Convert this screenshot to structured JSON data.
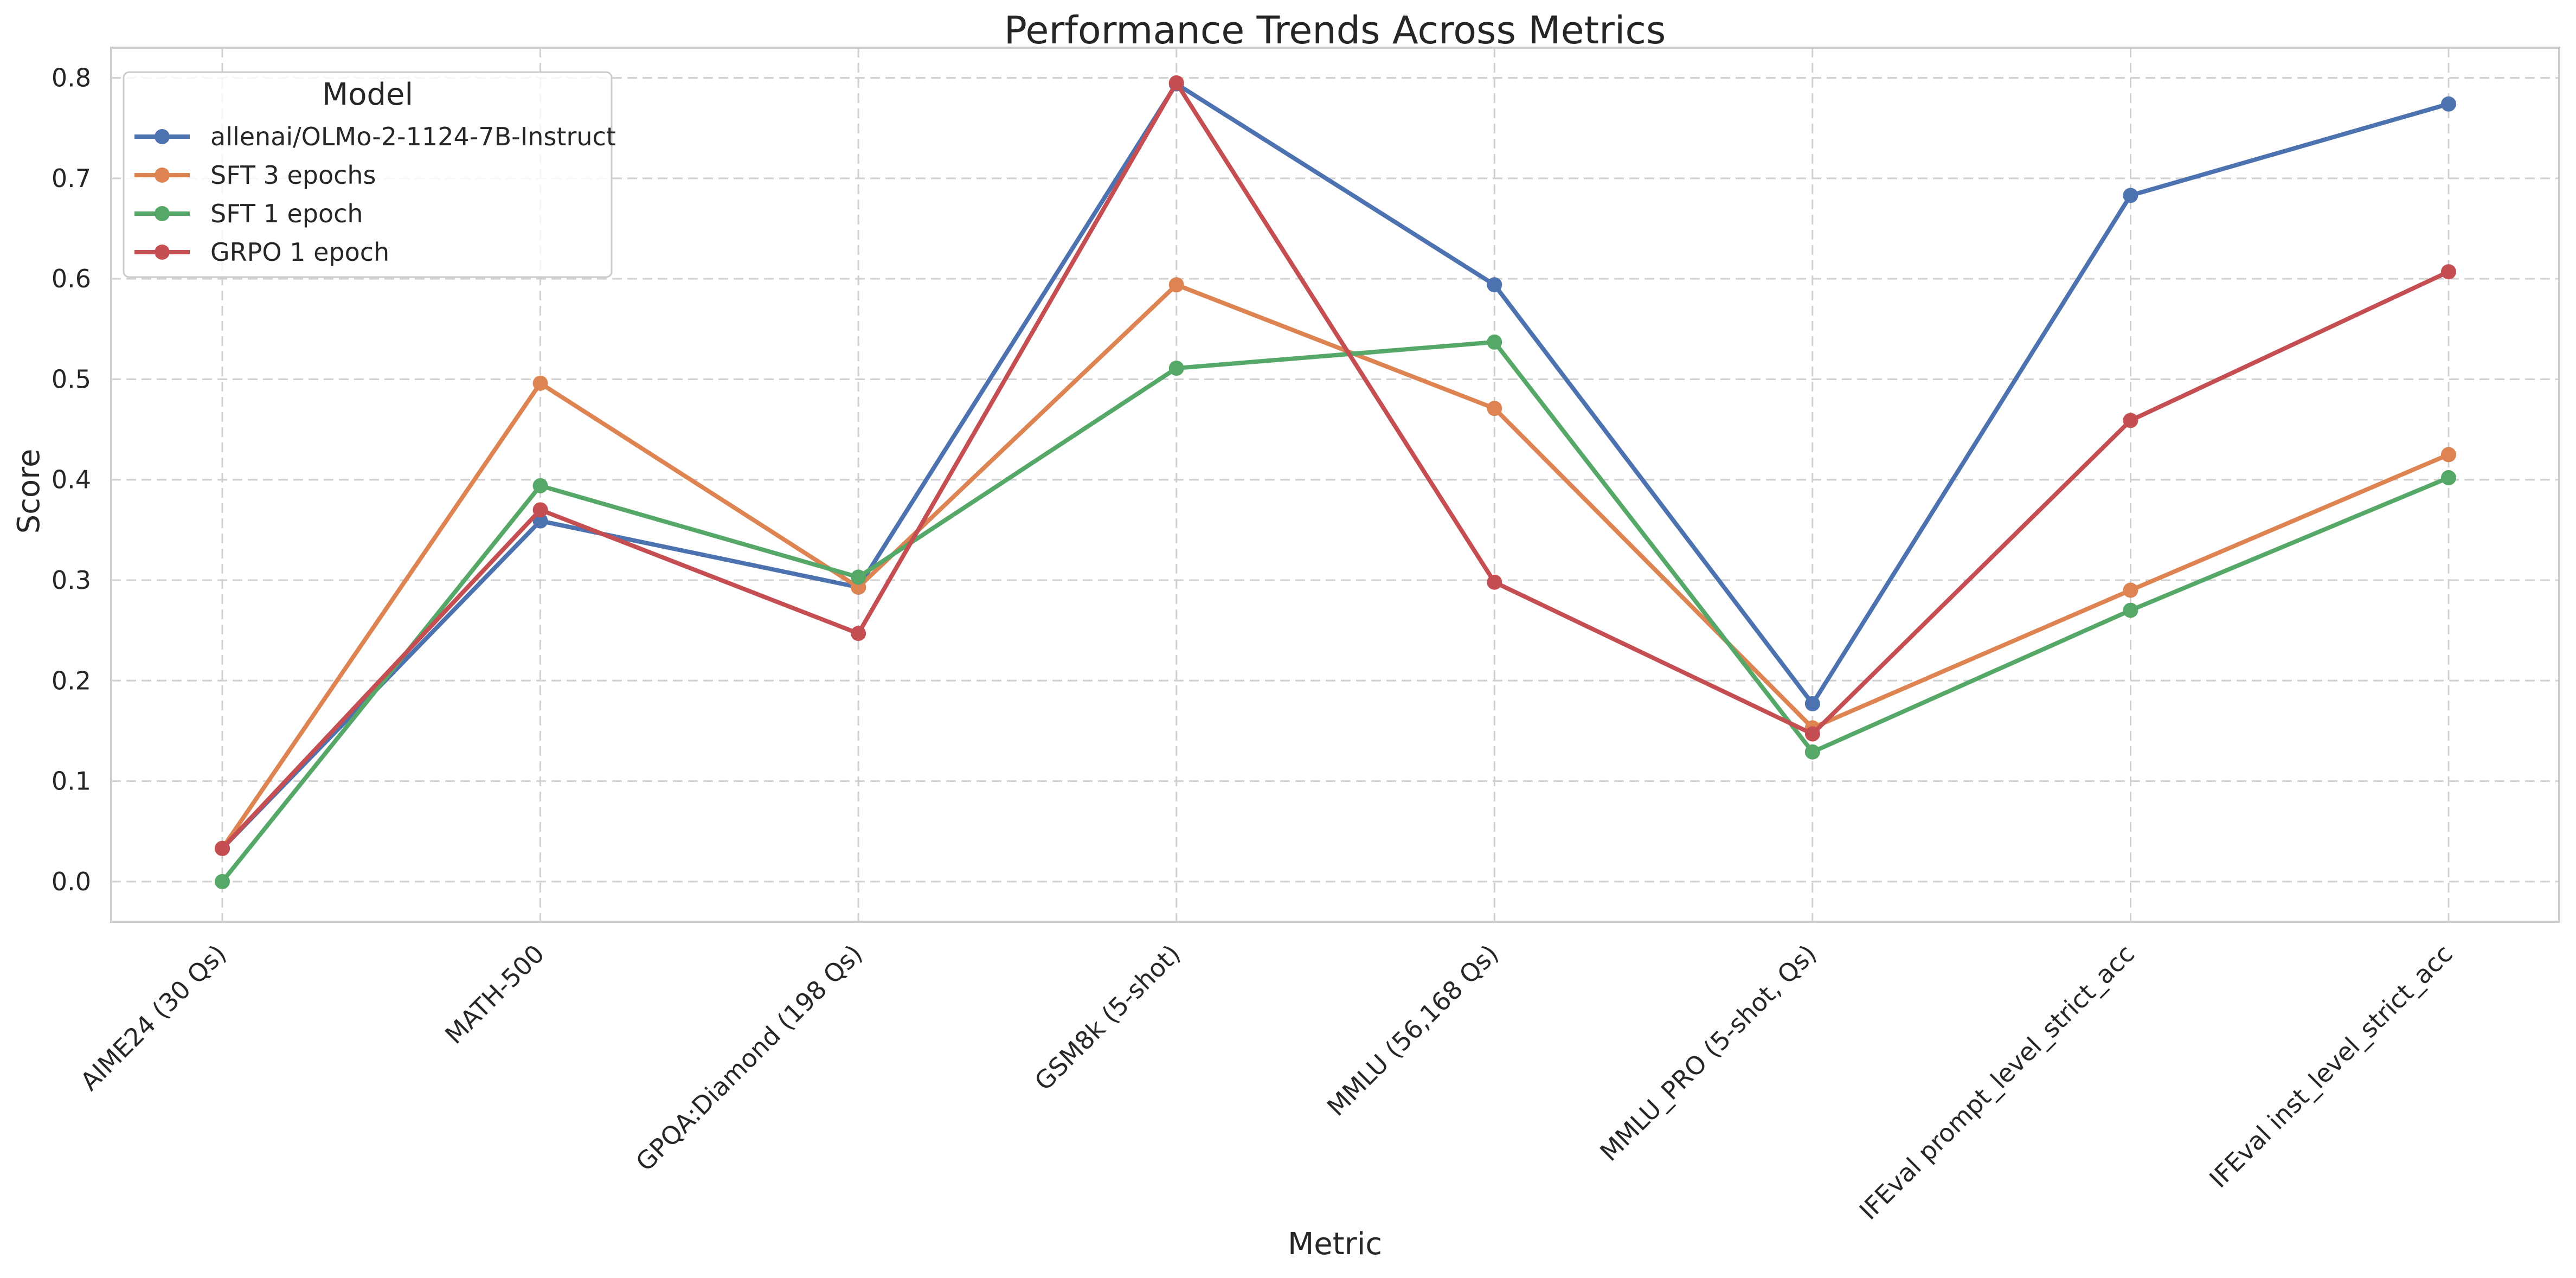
{
  "chart_data": {
    "type": "line",
    "title": "Performance Trends Across Metrics",
    "xlabel": "Metric",
    "ylabel": "Score",
    "categories": [
      "AIME24 (30 Qs)",
      "MATH-500",
      "GPQA:Diamond (198 Qs)",
      "GSM8k (5-shot)",
      "MMLU (56,168 Qs)",
      "MMLU_PRO (5-shot, Qs)",
      "IFEval prompt_level_strict_acc",
      "IFEval inst_level_strict_acc"
    ],
    "yticks": [
      "0.0",
      "0.1",
      "0.2",
      "0.3",
      "0.4",
      "0.5",
      "0.6",
      "0.7",
      "0.8"
    ],
    "ylim": [
      -0.04,
      0.83
    ],
    "grid": true,
    "legend": {
      "title": "Model",
      "placement": "top-left"
    },
    "series": [
      {
        "name": "allenai/OLMo-2-1124-7B-Instruct",
        "color": "#4c72b0",
        "values": [
          0.033,
          0.359,
          0.293,
          0.794,
          0.594,
          0.177,
          0.683,
          0.774
        ]
      },
      {
        "name": "SFT 3 epochs",
        "color": "#dd8452",
        "values": [
          0.033,
          0.496,
          0.293,
          0.594,
          0.471,
          0.153,
          0.29,
          0.425
        ]
      },
      {
        "name": "SFT 1 epoch",
        "color": "#55a868",
        "values": [
          0.0,
          0.394,
          0.303,
          0.511,
          0.537,
          0.129,
          0.27,
          0.402
        ]
      },
      {
        "name": "GRPO 1 epoch",
        "color": "#c44e52",
        "values": [
          0.033,
          0.37,
          0.247,
          0.795,
          0.298,
          0.147,
          0.459,
          0.607
        ]
      }
    ]
  }
}
